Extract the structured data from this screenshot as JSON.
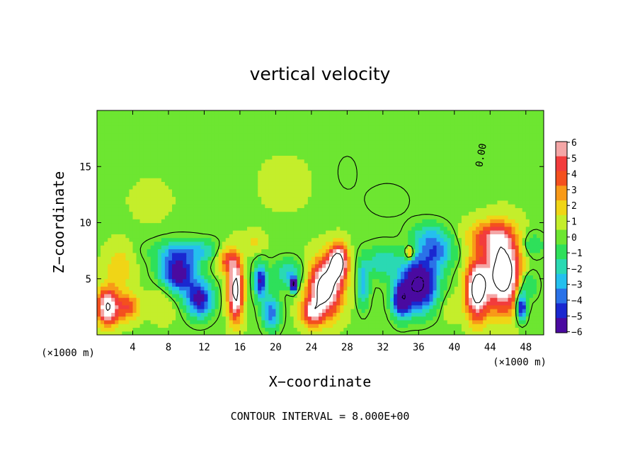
{
  "chart_data": {
    "type": "heatmap",
    "title": "vertical velocity",
    "xlabel": "X−coordinate",
    "ylabel": "Z−coordinate",
    "x_unit": "(×1000 m)",
    "xlim": [
      0,
      50
    ],
    "ylim": [
      0,
      20
    ],
    "x_ticks": [
      "4",
      "8",
      "12",
      "16",
      "20",
      "24",
      "28",
      "32",
      "36",
      "40",
      "44",
      "48"
    ],
    "y_ticks": [
      "5",
      "10",
      "15"
    ],
    "colorbar": {
      "ticks": [
        "6",
        "5",
        "4",
        "3",
        "2",
        "1",
        "0",
        "−1",
        "−2",
        "−3",
        "−4",
        "−5",
        "−6"
      ],
      "colors": [
        "#f4a6a6",
        "#f23c3c",
        "#f4501e",
        "#f89a18",
        "#f0d516",
        "#c4ee2b",
        "#6de631",
        "#2ee05a",
        "#2ad9b3",
        "#24c0ee",
        "#2a72e8",
        "#1a28d0",
        "#4a0aa0"
      ]
    },
    "background_level": 0.3,
    "cells": [
      {
        "x": 6,
        "z": 12,
        "v": 1.2,
        "sx": 2.0,
        "sz": 1.5
      },
      {
        "x": 2.5,
        "z": 6,
        "v": 2.0,
        "sx": 1.6,
        "sz": 2.0
      },
      {
        "x": 1.2,
        "z": 2.5,
        "v": 8.0,
        "sx": 1.2,
        "sz": 1.6
      },
      {
        "x": 3.5,
        "z": 2.5,
        "v": 4.0,
        "sx": 1.2,
        "sz": 1.2
      },
      {
        "x": 9,
        "z": 5.5,
        "v": -7.0,
        "sx": 2.0,
        "sz": 1.8
      },
      {
        "x": 11.5,
        "z": 3.2,
        "v": -6.0,
        "sx": 1.5,
        "sz": 1.6
      },
      {
        "x": 10.5,
        "z": 7.5,
        "v": -3.0,
        "sx": 4.0,
        "sz": 1.0
      },
      {
        "x": 7.5,
        "z": 3.5,
        "v": 1.5,
        "sx": 1.6,
        "sz": 2.0
      },
      {
        "x": 14.5,
        "z": 6.8,
        "v": 4.0,
        "sx": 1.2,
        "sz": 1.2
      },
      {
        "x": 15.5,
        "z": 4.0,
        "v": 9.0,
        "sx": 0.8,
        "sz": 2.6
      },
      {
        "x": 18.3,
        "z": 4.8,
        "v": -6.0,
        "sx": 0.7,
        "sz": 1.5
      },
      {
        "x": 19.5,
        "z": 2.0,
        "v": -4.5,
        "sx": 1.0,
        "sz": 1.5
      },
      {
        "x": 21.5,
        "z": 5.5,
        "v": -3.0,
        "sx": 1.8,
        "sz": 1.2
      },
      {
        "x": 17.5,
        "z": 8.2,
        "v": 1.5,
        "sx": 1.2,
        "sz": 1.0
      },
      {
        "x": 22,
        "z": 4.5,
        "v": -8.0,
        "sx": 0.4,
        "sz": 0.6
      },
      {
        "x": 25.5,
        "z": 4.2,
        "v": 9.5,
        "sx": 1.8,
        "sz": 2.4
      },
      {
        "x": 27,
        "z": 6.5,
        "v": 9.0,
        "sx": 1.0,
        "sz": 1.5
      },
      {
        "x": 24,
        "z": 2.0,
        "v": 5.0,
        "sx": 1.2,
        "sz": 1.2
      },
      {
        "x": 29.8,
        "z": 4.5,
        "v": -3.5,
        "sx": 0.7,
        "sz": 2.0
      },
      {
        "x": 32,
        "z": 6.5,
        "v": -2.5,
        "sx": 2.0,
        "sz": 1.5
      },
      {
        "x": 36,
        "z": 4.5,
        "v": -9.0,
        "sx": 2.0,
        "sz": 2.2
      },
      {
        "x": 34,
        "z": 3.0,
        "v": -6.0,
        "sx": 1.0,
        "sz": 1.5
      },
      {
        "x": 38,
        "z": 7.5,
        "v": -4.0,
        "sx": 2.0,
        "sz": 1.5
      },
      {
        "x": 35,
        "z": 7.3,
        "v": 4.0,
        "sx": 0.5,
        "sz": 0.6
      },
      {
        "x": 37,
        "z": 9.0,
        "v": -2.0,
        "sx": 2.0,
        "sz": 1.2
      },
      {
        "x": 39.5,
        "z": 2.5,
        "v": 1.0,
        "sx": 1.0,
        "sz": 1.2
      },
      {
        "x": 42.5,
        "z": 4.0,
        "v": 9.0,
        "sx": 1.2,
        "sz": 2.5
      },
      {
        "x": 45.5,
        "z": 5.5,
        "v": 10.0,
        "sx": 2.0,
        "sz": 3.2
      },
      {
        "x": 44,
        "z": 8.8,
        "v": 4.0,
        "sx": 2.5,
        "sz": 1.4
      },
      {
        "x": 47.5,
        "z": 2.5,
        "v": -7.0,
        "sx": 0.6,
        "sz": 1.2
      },
      {
        "x": 48,
        "z": 4.5,
        "v": -3.0,
        "sx": 1.2,
        "sz": 1.5
      },
      {
        "x": 48.5,
        "z": 8.0,
        "v": -2.0,
        "sx": 1.5,
        "sz": 1.2
      },
      {
        "x": 32.5,
        "z": 12.0,
        "v": -0.8,
        "sx": 2.5,
        "sz": 1.5
      },
      {
        "x": 28,
        "z": 14.5,
        "v": -0.5,
        "sx": 1.5,
        "sz": 2.0
      },
      {
        "x": 21,
        "z": 13.5,
        "v": 0.6,
        "sx": 3.0,
        "sz": 2.5
      }
    ],
    "contour_interval": "CONTOUR INTERVAL =  8.000E+00",
    "contour_label": "0.00"
  }
}
